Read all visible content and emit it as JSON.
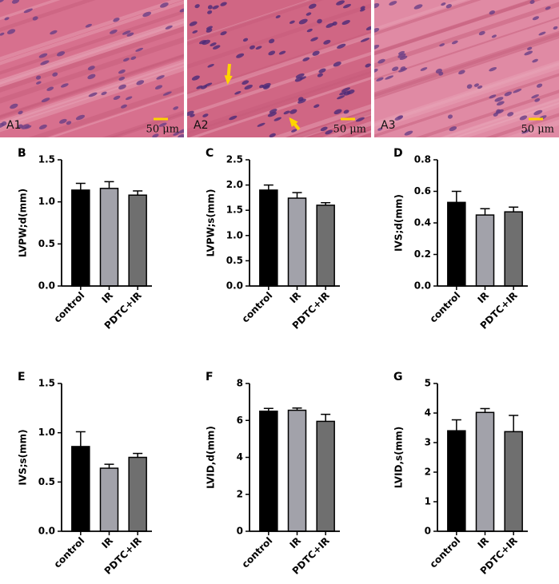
{
  "images": [
    {
      "label": "A1",
      "scale": "50 μm"
    },
    {
      "label": "A2",
      "scale": "50 μm"
    },
    {
      "label": "A3",
      "scale": "50 μm"
    }
  ],
  "chart_data": [
    {
      "type": "bar",
      "panel": "B",
      "ylabel": "LVPW;d(mm)",
      "categories": [
        "control",
        "IR",
        "PDTC+IR"
      ],
      "values": [
        1.14,
        1.16,
        1.08
      ],
      "errors": [
        0.08,
        0.08,
        0.05
      ],
      "colors": [
        "#000000",
        "#a2a2aa",
        "#6f6f6f"
      ],
      "ylim": [
        0,
        1.5
      ],
      "yticks": [
        {
          "value": 0,
          "label": "0.0"
        },
        {
          "value": 0.5,
          "label": "0.5"
        },
        {
          "value": 1,
          "label": "1.0"
        },
        {
          "value": 1.5,
          "label": "1.5"
        }
      ]
    },
    {
      "type": "bar",
      "panel": "C",
      "ylabel": "LVPW;s(mm)",
      "categories": [
        "control",
        "IR",
        "PDTC+IR"
      ],
      "values": [
        1.9,
        1.74,
        1.6
      ],
      "errors": [
        0.1,
        0.11,
        0.05
      ],
      "colors": [
        "#000000",
        "#a2a2aa",
        "#6f6f6f"
      ],
      "ylim": [
        0,
        2.5
      ],
      "yticks": [
        {
          "value": 0,
          "label": "0.0"
        },
        {
          "value": 0.5,
          "label": "0.5"
        },
        {
          "value": 1,
          "label": "1.0"
        },
        {
          "value": 1.5,
          "label": "1.5"
        },
        {
          "value": 2,
          "label": "2.0"
        },
        {
          "value": 2.5,
          "label": "2.5"
        }
      ]
    },
    {
      "type": "bar",
      "panel": "D",
      "ylabel": "IVS;d(mm)",
      "categories": [
        "control",
        "IR",
        "PDTC+IR"
      ],
      "values": [
        0.53,
        0.45,
        0.47
      ],
      "errors": [
        0.07,
        0.04,
        0.03
      ],
      "colors": [
        "#000000",
        "#a2a2aa",
        "#6f6f6f"
      ],
      "ylim": [
        0,
        0.8
      ],
      "yticks": [
        {
          "value": 0,
          "label": "0.0"
        },
        {
          "value": 0.2,
          "label": "0.2"
        },
        {
          "value": 0.4,
          "label": "0.4"
        },
        {
          "value": 0.6,
          "label": "0.6"
        },
        {
          "value": 0.8,
          "label": "0.8"
        }
      ]
    },
    {
      "type": "bar",
      "panel": "E",
      "ylabel": "IVS;s(mm)",
      "categories": [
        "control",
        "IR",
        "PDTC+IR"
      ],
      "values": [
        0.86,
        0.64,
        0.75
      ],
      "errors": [
        0.15,
        0.04,
        0.04
      ],
      "colors": [
        "#000000",
        "#a2a2aa",
        "#6f6f6f"
      ],
      "ylim": [
        0,
        1.5
      ],
      "yticks": [
        {
          "value": 0,
          "label": "0.0"
        },
        {
          "value": 0.5,
          "label": "0.5"
        },
        {
          "value": 1,
          "label": "1.0"
        },
        {
          "value": 1.5,
          "label": "1.5"
        }
      ]
    },
    {
      "type": "bar",
      "panel": "F",
      "ylabel": "LVID,d(mm)",
      "categories": [
        "control",
        "IR",
        "PDTC+IR"
      ],
      "values": [
        6.5,
        6.55,
        5.95
      ],
      "errors": [
        0.15,
        0.12,
        0.38
      ],
      "colors": [
        "#000000",
        "#a2a2aa",
        "#6f6f6f"
      ],
      "ylim": [
        0,
        8
      ],
      "yticks": [
        0,
        2,
        4,
        6,
        8
      ]
    },
    {
      "type": "bar",
      "panel": "G",
      "ylabel": "LVID,s(mm)",
      "categories": [
        "control",
        "IR",
        "PDTC+IR"
      ],
      "values": [
        3.4,
        4.02,
        3.37
      ],
      "errors": [
        0.37,
        0.13,
        0.55
      ],
      "colors": [
        "#000000",
        "#a2a2aa",
        "#6f6f6f"
      ],
      "ylim": [
        0,
        5
      ],
      "yticks": [
        0,
        1,
        2,
        3,
        4,
        5
      ]
    }
  ]
}
